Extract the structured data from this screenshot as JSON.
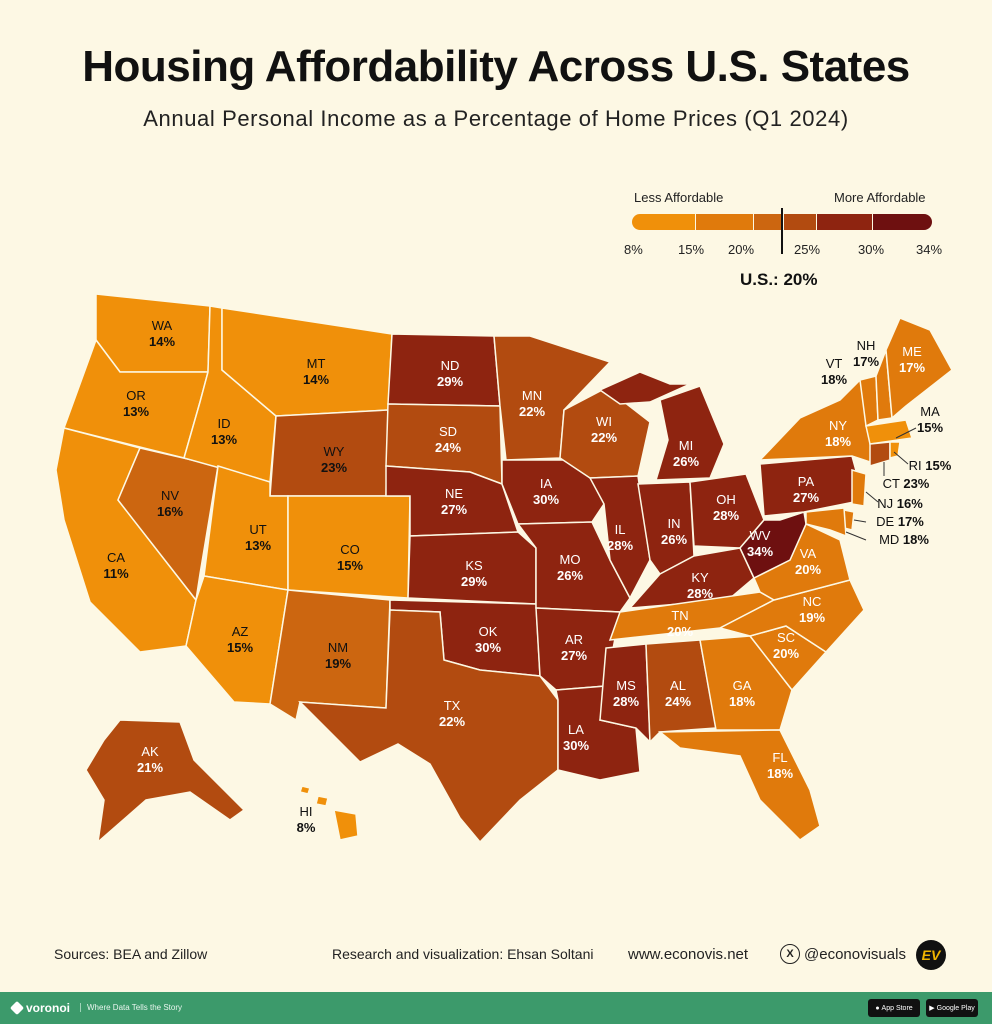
{
  "title": "Housing Affordability Across U.S. States",
  "subtitle": "Annual Personal Income as a Percentage of Home Prices (Q1 2024)",
  "legend": {
    "less_label": "Less Affordable",
    "more_label": "More Affordable",
    "ticks": [
      "8%",
      "15%",
      "20%",
      "25%",
      "30%",
      "34%"
    ],
    "us_label": "U.S.: 20%",
    "colors": [
      "#f0900a",
      "#e07a0c",
      "#cc6610",
      "#b24b10",
      "#8e2410",
      "#6e1010"
    ]
  },
  "chart_data": {
    "type": "choropleth",
    "us_average": 20,
    "scale_range": [
      8,
      34
    ],
    "states": [
      {
        "abbr": "WA",
        "value": "14%"
      },
      {
        "abbr": "OR",
        "value": "13%"
      },
      {
        "abbr": "CA",
        "value": "11%"
      },
      {
        "abbr": "NV",
        "value": "16%"
      },
      {
        "abbr": "ID",
        "value": "13%"
      },
      {
        "abbr": "MT",
        "value": "14%"
      },
      {
        "abbr": "WY",
        "value": "23%"
      },
      {
        "abbr": "UT",
        "value": "13%"
      },
      {
        "abbr": "CO",
        "value": "15%"
      },
      {
        "abbr": "AZ",
        "value": "15%"
      },
      {
        "abbr": "NM",
        "value": "19%"
      },
      {
        "abbr": "ND",
        "value": "29%"
      },
      {
        "abbr": "SD",
        "value": "24%"
      },
      {
        "abbr": "NE",
        "value": "27%"
      },
      {
        "abbr": "KS",
        "value": "29%"
      },
      {
        "abbr": "OK",
        "value": "30%"
      },
      {
        "abbr": "TX",
        "value": "22%"
      },
      {
        "abbr": "MN",
        "value": "22%"
      },
      {
        "abbr": "IA",
        "value": "30%"
      },
      {
        "abbr": "MO",
        "value": "26%"
      },
      {
        "abbr": "AR",
        "value": "27%"
      },
      {
        "abbr": "LA",
        "value": "30%"
      },
      {
        "abbr": "WI",
        "value": "22%"
      },
      {
        "abbr": "IL",
        "value": "28%"
      },
      {
        "abbr": "MI",
        "value": "26%"
      },
      {
        "abbr": "IN",
        "value": "26%"
      },
      {
        "abbr": "OH",
        "value": "28%"
      },
      {
        "abbr": "KY",
        "value": "28%"
      },
      {
        "abbr": "TN",
        "value": "20%"
      },
      {
        "abbr": "MS",
        "value": "28%"
      },
      {
        "abbr": "AL",
        "value": "24%"
      },
      {
        "abbr": "GA",
        "value": "18%"
      },
      {
        "abbr": "FL",
        "value": "18%"
      },
      {
        "abbr": "SC",
        "value": "20%"
      },
      {
        "abbr": "NC",
        "value": "19%"
      },
      {
        "abbr": "VA",
        "value": "20%"
      },
      {
        "abbr": "WV",
        "value": "34%"
      },
      {
        "abbr": "PA",
        "value": "27%"
      },
      {
        "abbr": "NY",
        "value": "18%"
      },
      {
        "abbr": "VT",
        "value": "18%"
      },
      {
        "abbr": "NH",
        "value": "17%"
      },
      {
        "abbr": "ME",
        "value": "17%"
      },
      {
        "abbr": "MA",
        "value": "15%"
      },
      {
        "abbr": "RI",
        "value": "15%"
      },
      {
        "abbr": "CT",
        "value": "23%"
      },
      {
        "abbr": "NJ",
        "value": "16%"
      },
      {
        "abbr": "DE",
        "value": "17%"
      },
      {
        "abbr": "MD",
        "value": "18%"
      },
      {
        "abbr": "AK",
        "value": "21%"
      },
      {
        "abbr": "HI",
        "value": "8%"
      }
    ]
  },
  "footer": {
    "sources": "Sources: BEA and Zillow",
    "research": "Research and visualization: Ehsan Soltani",
    "website": "www.econovis.net",
    "handle": "@econovisuals",
    "x_icon": "x-logo-icon",
    "logo": "EV"
  },
  "bottom_bar": {
    "brand": "voronoi",
    "tagline": "Where Data Tells the Story",
    "app_store": "App Store",
    "google_play": "Google Play"
  }
}
